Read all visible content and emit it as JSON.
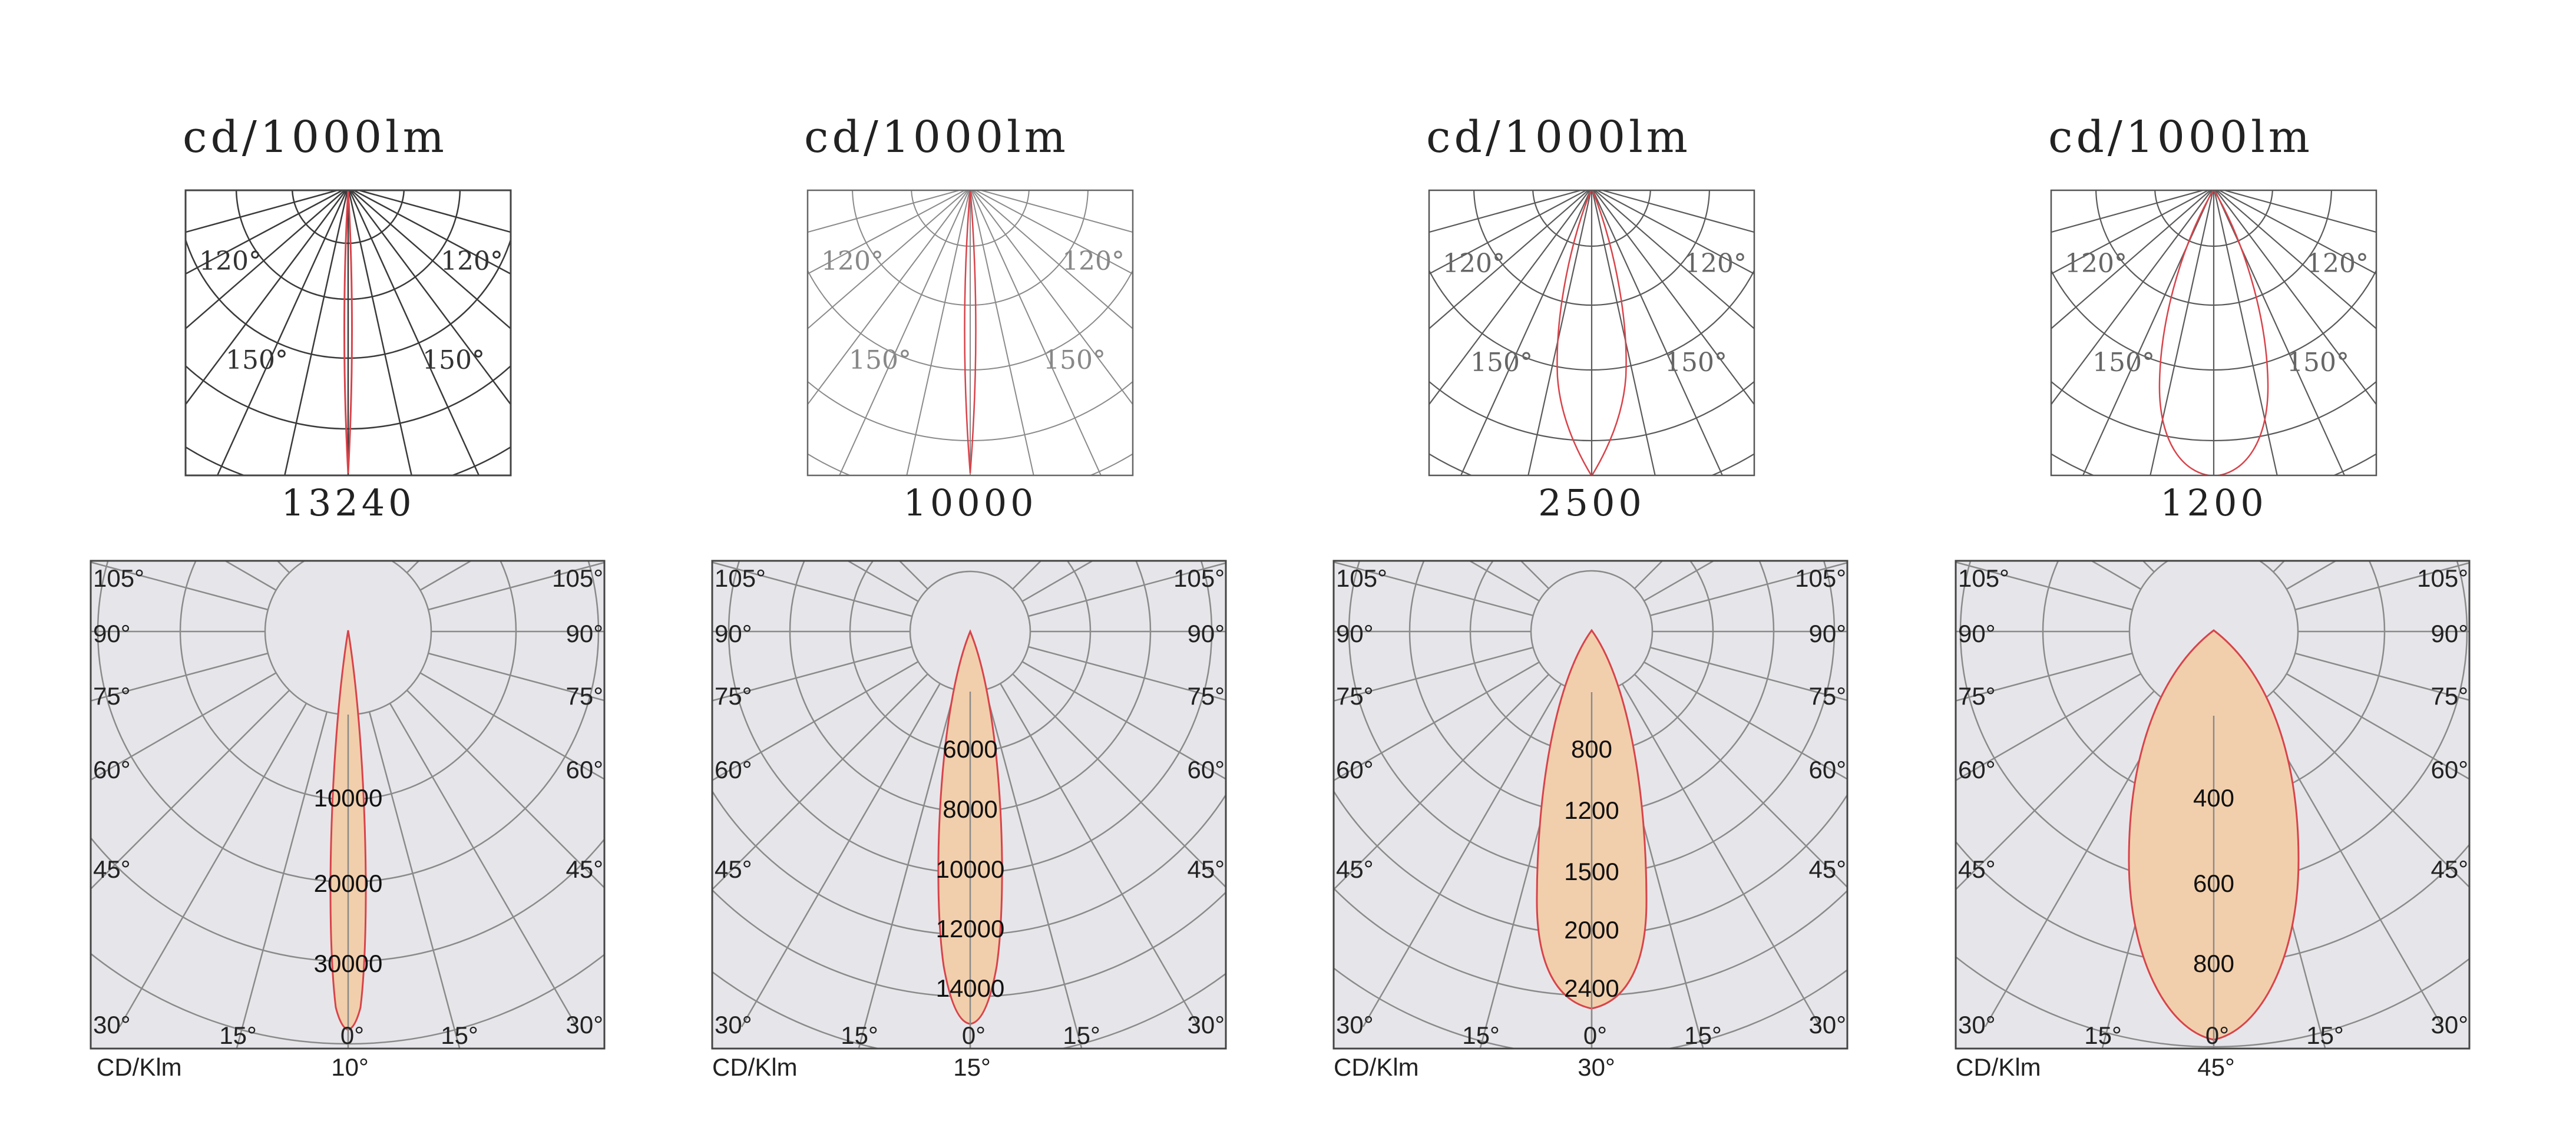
{
  "colors": {
    "curve": "#d8434a",
    "fill": "#f2cfac",
    "panel_bg": "#e6e6ea",
    "grid": "#8a8a8a",
    "frame": "#444444"
  },
  "chart_data": [
    {
      "type": "polar",
      "beam_angle": "10°",
      "top": {
        "title": "cd/1000lm",
        "max_value": "13240",
        "angle_labels": [
          "120°",
          "120°",
          "150°",
          "150°"
        ],
        "half_width_deg": 1.6
      },
      "bottom": {
        "unit": "CD/Klm",
        "angle_labels": [
          "105°",
          "105°",
          "90°",
          "90°",
          "75°",
          "75°",
          "60°",
          "60°",
          "45°",
          "45°",
          "30°",
          "30°",
          "15°",
          "0°",
          "15°"
        ],
        "ring_labels": [
          "10000",
          "20000",
          "30000"
        ],
        "half_width_deg": 3.5
      }
    },
    {
      "type": "polar",
      "beam_angle": "15°",
      "top": {
        "title": "cd/1000lm",
        "max_value": "10000",
        "angle_labels": [
          "120°",
          "120°",
          "150°",
          "150°"
        ],
        "half_width_deg": 2.2
      },
      "bottom": {
        "unit": "CD/Klm",
        "angle_labels": [
          "105°",
          "105°",
          "90°",
          "90°",
          "75°",
          "75°",
          "60°",
          "60°",
          "45°",
          "45°",
          "30°",
          "30°",
          "15°",
          "0°",
          "15°"
        ],
        "ring_labels": [
          "6000",
          "8000",
          "10000",
          "12000",
          "14000"
        ],
        "half_width_deg": 5.5
      }
    },
    {
      "type": "polar",
      "beam_angle": "30°",
      "top": {
        "title": "cd/1000lm",
        "max_value": "2500",
        "angle_labels": [
          "120°",
          "120°",
          "150°",
          "150°"
        ],
        "half_width_deg": 7
      },
      "bottom": {
        "unit": "CD/Klm",
        "angle_labels": [
          "105°",
          "105°",
          "90°",
          "90°",
          "75°",
          "75°",
          "60°",
          "60°",
          "45°",
          "45°",
          "30°",
          "30°",
          "15°",
          "0°",
          "15°"
        ],
        "ring_labels": [
          "800",
          "1200",
          "1500",
          "2000",
          "2400"
        ],
        "half_width_deg": 8
      }
    },
    {
      "type": "polar",
      "beam_angle": "45°",
      "top": {
        "title": "cd/1000lm",
        "max_value": "1200",
        "angle_labels": [
          "120°",
          "120°",
          "150°",
          "150°"
        ],
        "half_width_deg": 10
      },
      "bottom": {
        "unit": "CD/Klm",
        "angle_labels": [
          "105°",
          "105°",
          "90°",
          "90°",
          "75°",
          "75°",
          "60°",
          "60°",
          "45°",
          "45°",
          "30°",
          "30°",
          "15°",
          "0°",
          "15°"
        ],
        "ring_labels": [
          "400",
          "600",
          "800"
        ],
        "half_width_deg": 13
      }
    }
  ]
}
